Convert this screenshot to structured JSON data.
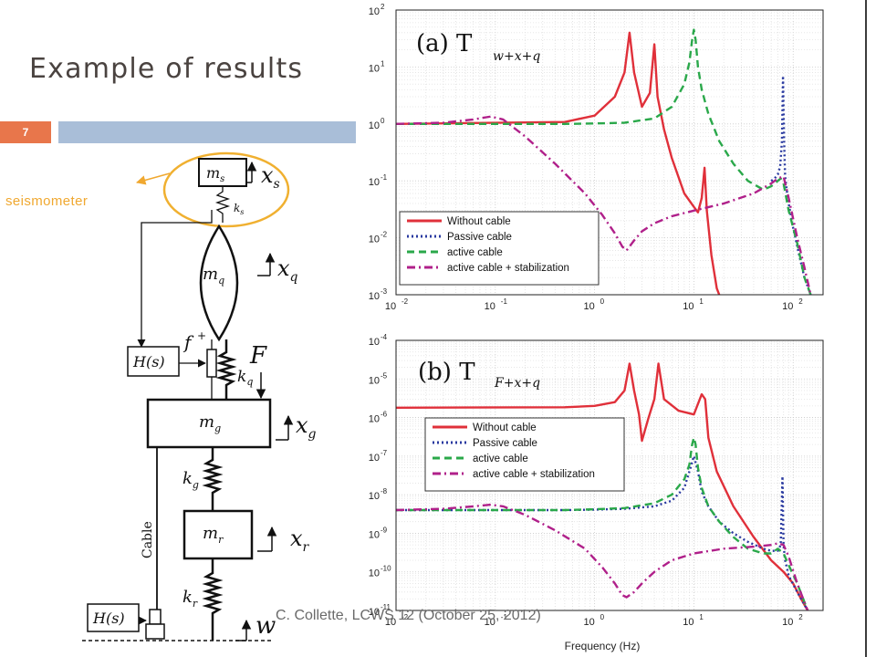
{
  "slide": {
    "title": "Example of results",
    "page_number": "7",
    "annotation": "seismometer",
    "footer": "C. Collette, LCWS 12 (October 25, 2012)",
    "colors": {
      "page_box": "#e8764b",
      "title_bar": "#a9bed8",
      "annotation": "#f0a830"
    }
  },
  "diagram": {
    "ms": "m",
    "ms_sub": "s",
    "xs": "x",
    "xs_sub": "s",
    "ks": "k",
    "ks_sub": "s",
    "mq": "m",
    "mq_sub": "q",
    "xq": "x",
    "xq_sub": "q",
    "f": "f",
    "F": "F",
    "kq": "k",
    "kq_sub": "q",
    "mg": "m",
    "mg_sub": "g",
    "xg": "x",
    "xg_sub": "g",
    "kg": "k",
    "kg_sub": "g",
    "mr": "m",
    "mr_sub": "r",
    "xr": "x",
    "xr_sub": "r",
    "kr": "k",
    "kr_sub": "r",
    "w": "w",
    "H1": "H(s)",
    "H2": "H(s)",
    "cable": "Cable"
  },
  "chart_data": [
    {
      "type": "line",
      "title": "(a) T",
      "title_sub": "w+x+q",
      "xscale": "log",
      "yscale": "log",
      "xlim": [
        0.01,
        200
      ],
      "ylim": [
        0.001,
        100
      ],
      "xlabel": "",
      "xticks": [
        "10",
        "10",
        "10",
        "10",
        "10"
      ],
      "xtick_exp": [
        "-2",
        "-1",
        "0",
        "1",
        "2"
      ],
      "yticks": [
        "10",
        "10",
        "10",
        "10",
        "10",
        "10"
      ],
      "ytick_exp": [
        "-3",
        "-2",
        "-1",
        "0",
        "1",
        "2"
      ],
      "grid": true,
      "legend_position": "bottom-left",
      "series": [
        {
          "name": "Without cable",
          "color": "#e0303a",
          "dash": "solid",
          "x": [
            0.01,
            0.5,
            1.0,
            1.6,
            2.0,
            2.25,
            2.5,
            3.0,
            3.6,
            4.0,
            4.3,
            5,
            6,
            8,
            10,
            11,
            12,
            12.8,
            13.5,
            15,
            17,
            18
          ],
          "y": [
            1,
            1.08,
            1.4,
            3.0,
            8.0,
            40,
            8,
            2.0,
            3.5,
            25,
            3.0,
            0.8,
            0.25,
            0.06,
            0.035,
            0.028,
            0.05,
            0.17,
            0.03,
            0.005,
            0.0013,
            0.001
          ]
        },
        {
          "name": "Passive cable",
          "color": "#2a3aa0",
          "dash": "dotted",
          "x": [
            60,
            65,
            70,
            74,
            77,
            79,
            81,
            83,
            86,
            90,
            100,
            115,
            130,
            150
          ],
          "y": [
            0.1,
            0.11,
            0.13,
            0.18,
            0.5,
            7,
            0.5,
            0.12,
            0.07,
            0.04,
            0.015,
            0.005,
            0.002,
            0.001
          ]
        },
        {
          "name": "active cable",
          "color": "#2aa84a",
          "dash": "dashed",
          "x": [
            0.01,
            0.5,
            1,
            2,
            4,
            6,
            8,
            9,
            9.6,
            10,
            10.4,
            11,
            12,
            14,
            18,
            25,
            35,
            50,
            60,
            70,
            75,
            80,
            90,
            110,
            130,
            150
          ],
          "y": [
            1,
            1,
            1.02,
            1.05,
            1.25,
            2.0,
            5.0,
            12,
            30,
            45,
            30,
            10,
            4,
            1.5,
            0.5,
            0.2,
            0.1,
            0.07,
            0.08,
            0.1,
            0.11,
            0.09,
            0.03,
            0.008,
            0.002,
            0.001
          ]
        },
        {
          "name": "active cable + stabilization",
          "color": "#b0208a",
          "dash": "dashdot",
          "x": [
            0.01,
            0.03,
            0.06,
            0.09,
            0.12,
            0.2,
            0.4,
            0.8,
            1.2,
            1.6,
            1.9,
            2.1,
            2.5,
            3,
            4,
            6,
            10,
            20,
            40,
            60,
            70,
            80,
            90,
            110,
            130,
            150
          ],
          "y": [
            1,
            1.05,
            1.2,
            1.35,
            1.2,
            0.6,
            0.2,
            0.06,
            0.025,
            0.012,
            0.007,
            0.006,
            0.009,
            0.013,
            0.018,
            0.024,
            0.03,
            0.04,
            0.06,
            0.09,
            0.11,
            0.12,
            0.05,
            0.01,
            0.003,
            0.001
          ]
        }
      ]
    },
    {
      "type": "line",
      "title": "(b) T",
      "title_sub": "F+x+q",
      "xscale": "log",
      "yscale": "log",
      "xlim": [
        0.01,
        200
      ],
      "ylim": [
        1e-11,
        0.0001
      ],
      "xlabel": "Frequency (Hz)",
      "xticks": [
        "10",
        "10",
        "10",
        "10",
        "10"
      ],
      "xtick_exp": [
        "-2",
        "-1",
        "0",
        "1",
        "2"
      ],
      "yticks": [
        "10",
        "10",
        "10",
        "10",
        "10",
        "10",
        "10",
        "10"
      ],
      "ytick_exp": [
        "-11",
        "-10",
        "-9",
        "-8",
        "-7",
        "-6",
        "-5",
        "-4"
      ],
      "grid": true,
      "legend_position": "top-right",
      "series": [
        {
          "name": "Without cable",
          "color": "#e0303a",
          "dash": "solid",
          "x": [
            0.01,
            0.5,
            1.0,
            1.6,
            2.0,
            2.25,
            2.5,
            2.8,
            3.0,
            3.5,
            4.0,
            4.4,
            5,
            7,
            10,
            12,
            13,
            14,
            17,
            25,
            40,
            60,
            80,
            100,
            120,
            140
          ],
          "y": [
            1.8e-06,
            1.85e-06,
            2e-06,
            2.5e-06,
            5e-06,
            2.5e-05,
            5e-06,
            1.2e-06,
            2.5e-07,
            1e-06,
            3e-06,
            2.5e-05,
            3e-06,
            1.5e-06,
            1.2e-06,
            4e-06,
            3e-06,
            3e-07,
            4e-08,
            5e-09,
            8e-10,
            2e-10,
            1e-10,
            5e-11,
            2e-11,
            1e-11
          ]
        },
        {
          "name": "Passive cable",
          "color": "#2a3aa0",
          "dash": "dotted",
          "x": [
            0.01,
            0.5,
            1,
            2,
            4,
            6,
            8,
            9,
            10,
            11,
            12,
            14,
            18,
            25,
            35,
            50,
            60,
            70,
            75,
            78,
            80,
            83,
            90,
            110,
            140
          ],
          "y": [
            4e-09,
            4e-09,
            4.1e-09,
            4.3e-09,
            5e-09,
            7e-09,
            1.5e-08,
            4e-08,
            1e-07,
            4e-08,
            1.2e-08,
            5e-09,
            2e-09,
            1e-09,
            6e-10,
            4e-10,
            3.5e-10,
            3.5e-10,
            5e-10,
            3e-08,
            5e-10,
            2e-10,
            8e-11,
            3e-11,
            1e-11
          ]
        },
        {
          "name": "active cable",
          "color": "#2aa84a",
          "dash": "dashed",
          "x": [
            0.01,
            0.5,
            1,
            2,
            4,
            6,
            8,
            9,
            9.6,
            10,
            10.4,
            11,
            12,
            14,
            18,
            25,
            35,
            50,
            60,
            70,
            80,
            90,
            110,
            140
          ],
          "y": [
            4e-09,
            4e-09,
            4.2e-09,
            4.5e-09,
            6e-09,
            1e-08,
            2.5e-08,
            6e-08,
            2e-07,
            3e-07,
            2e-07,
            5e-08,
            1.5e-08,
            5e-09,
            2e-09,
            8e-10,
            4e-10,
            3e-10,
            3e-10,
            4e-10,
            3e-10,
            1.5e-10,
            5e-11,
            1e-11
          ]
        },
        {
          "name": "active cable + stabilization",
          "color": "#b0208a",
          "dash": "dashdot",
          "x": [
            0.01,
            0.03,
            0.06,
            0.09,
            0.12,
            0.2,
            0.4,
            0.8,
            1.2,
            1.6,
            1.9,
            2.1,
            2.5,
            3,
            4,
            6,
            10,
            20,
            40,
            60,
            70,
            80,
            90,
            110,
            140
          ],
          "y": [
            4e-09,
            4.3e-09,
            5e-09,
            5.5e-09,
            5e-09,
            3e-09,
            1.2e-09,
            4e-10,
            1.3e-10,
            5e-11,
            2.5e-11,
            2.2e-11,
            3e-11,
            5e-11,
            1e-10,
            2e-10,
            3e-10,
            4e-10,
            4.5e-10,
            5e-10,
            5.5e-10,
            5e-10,
            2.5e-10,
            5e-11,
            1e-11
          ]
        }
      ]
    }
  ]
}
